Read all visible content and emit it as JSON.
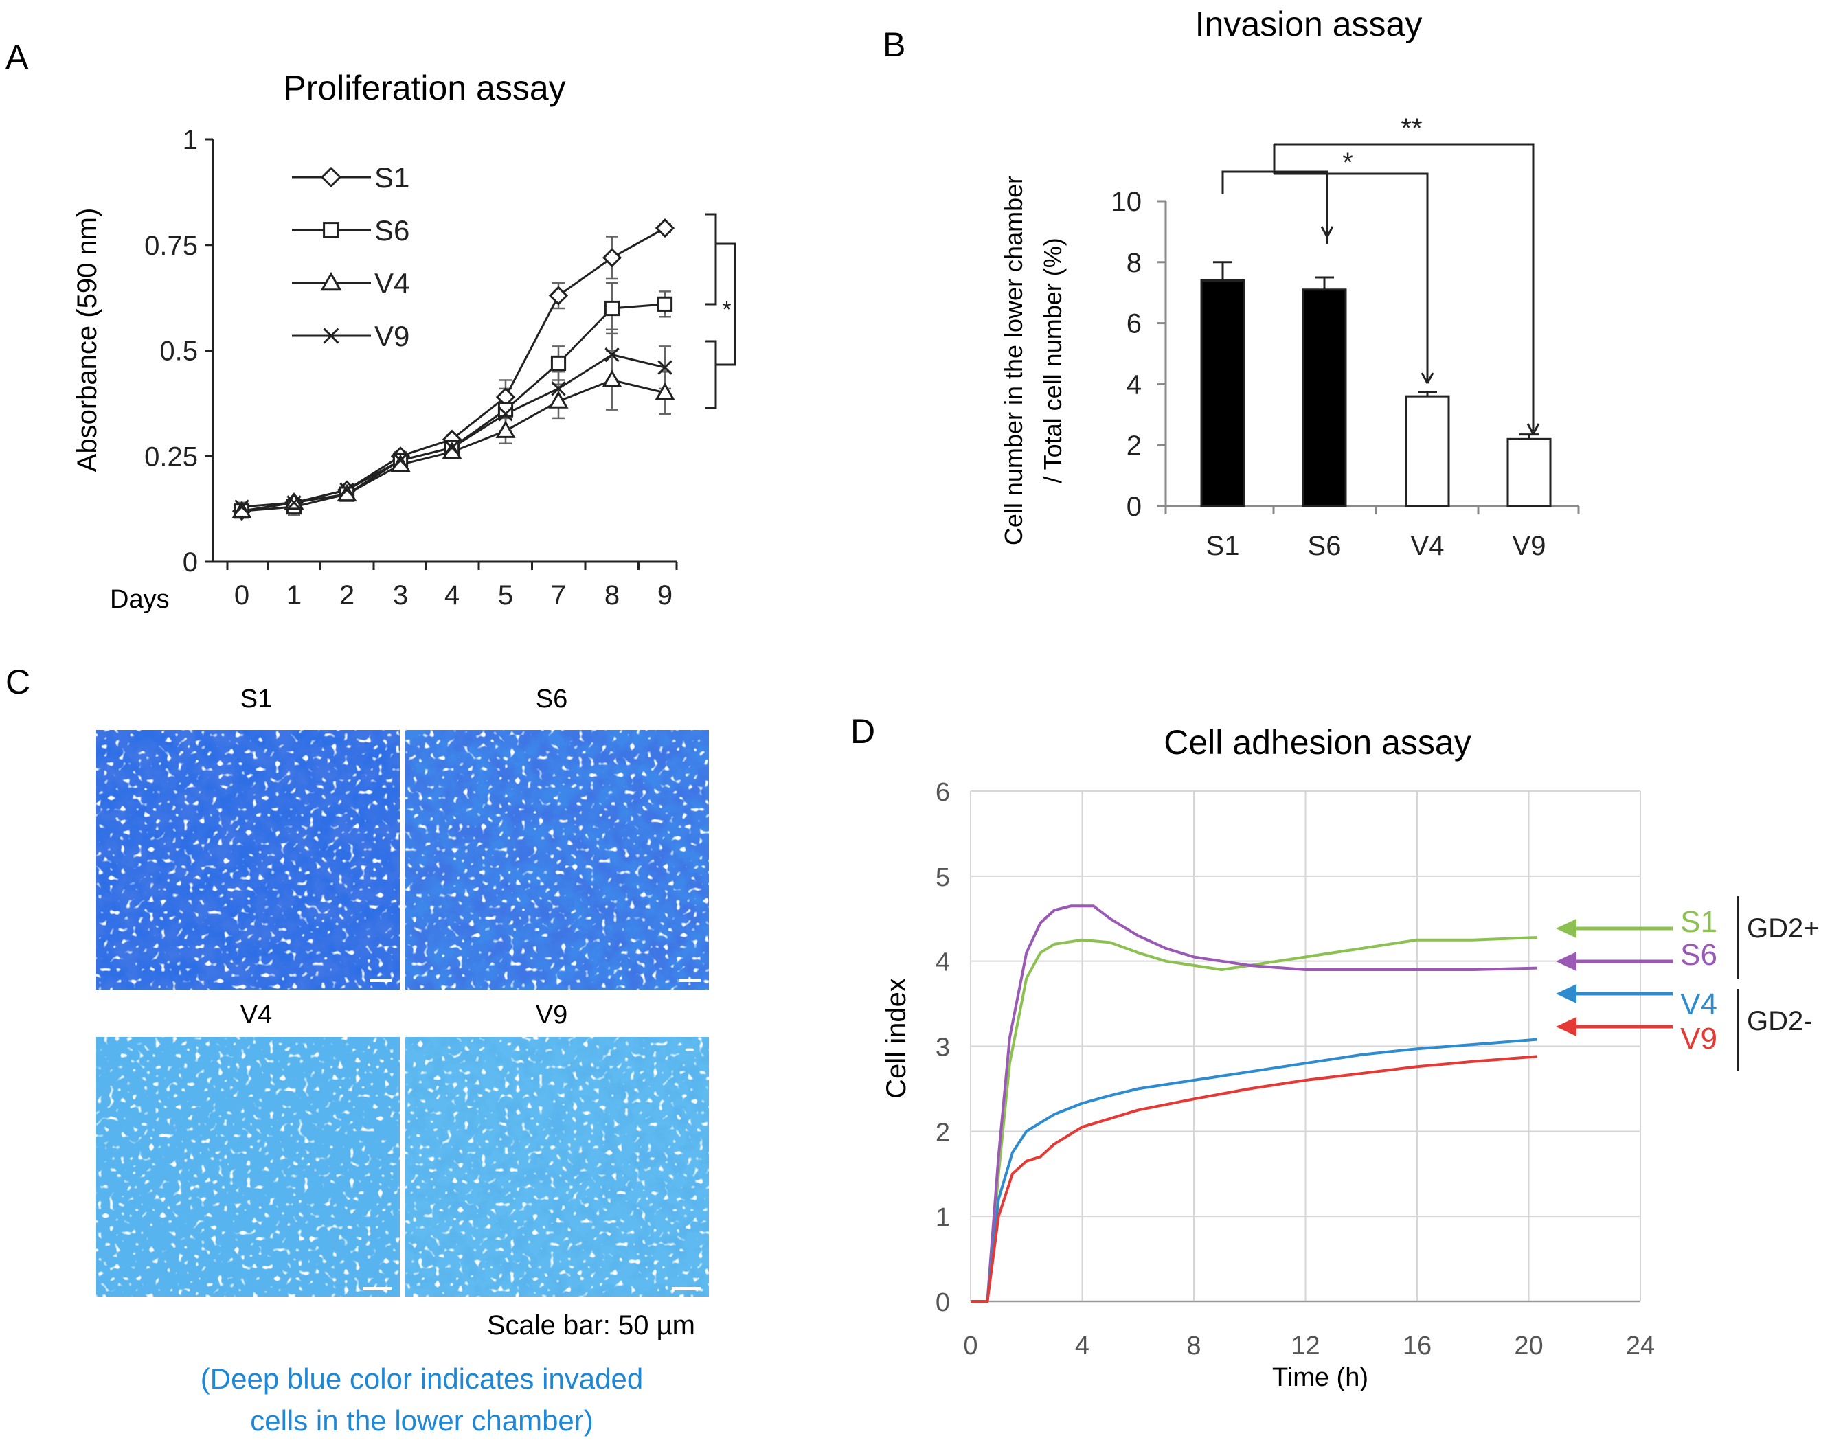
{
  "panel_letters": {
    "a": "A",
    "b": "B",
    "c": "C",
    "d": "D"
  },
  "chart_data": [
    {
      "panel": "A",
      "type": "line",
      "title": "Proliferation assay",
      "xlabel": "Days",
      "ylabel": "Absorbance (590 nm)",
      "categories": [
        "0",
        "1",
        "2",
        "3",
        "4",
        "5",
        "7",
        "8",
        "9"
      ],
      "ylim": [
        0,
        1
      ],
      "yticks": [
        "0",
        "0.25",
        "0.5",
        "0.75",
        "1"
      ],
      "series": [
        {
          "name": "S1",
          "marker": "diamond",
          "values": [
            0.12,
            0.14,
            0.17,
            0.25,
            0.29,
            0.39,
            0.63,
            0.72,
            0.79
          ],
          "errors": [
            0.01,
            0.01,
            0.01,
            0.01,
            0.01,
            0.04,
            0.03,
            0.05,
            0.01
          ]
        },
        {
          "name": "S6",
          "marker": "square",
          "values": [
            0.12,
            0.13,
            0.16,
            0.24,
            0.27,
            0.36,
            0.47,
            0.6,
            0.61
          ],
          "errors": [
            0.01,
            0.02,
            0.01,
            0.01,
            0.01,
            0.05,
            0.04,
            0.06,
            0.03
          ]
        },
        {
          "name": "V4",
          "marker": "triangle",
          "values": [
            0.12,
            0.14,
            0.16,
            0.23,
            0.26,
            0.31,
            0.38,
            0.43,
            0.4
          ],
          "errors": [
            0.01,
            0.01,
            0.01,
            0.01,
            0.01,
            0.03,
            0.04,
            0.07,
            0.05
          ]
        },
        {
          "name": "V9",
          "marker": "x",
          "values": [
            0.13,
            0.14,
            0.17,
            0.24,
            0.27,
            0.35,
            0.41,
            0.49,
            0.46
          ],
          "errors": [
            0.01,
            0.01,
            0.01,
            0.01,
            0.01,
            0.04,
            0.04,
            0.06,
            0.05
          ]
        }
      ],
      "significance": "*"
    },
    {
      "panel": "B",
      "type": "bar",
      "title": "Invasion assay",
      "ylabel_line1": "Cell number in the lower chamber",
      "ylabel_line2": "/ Total cell number (%)",
      "categories": [
        "S1",
        "S6",
        "V4",
        "V9"
      ],
      "values": [
        7.4,
        7.1,
        3.6,
        2.2
      ],
      "errors": [
        0.6,
        0.4,
        0.15,
        0.15
      ],
      "fills": [
        "#000000",
        "#000000",
        "#ffffff",
        "#ffffff"
      ],
      "ylim": [
        0,
        10
      ],
      "yticks": [
        "0",
        "2",
        "4",
        "6",
        "8",
        "10"
      ],
      "significance": [
        {
          "label": "*",
          "target": "V4"
        },
        {
          "label": "**",
          "target": "V9"
        }
      ]
    },
    {
      "panel": "D",
      "type": "line",
      "title": "Cell adhesion assay",
      "xlabel": "Time (h)",
      "ylabel": "Cell index",
      "xlim": [
        0,
        24
      ],
      "ylim": [
        0,
        6
      ],
      "xticks": [
        "0",
        "4",
        "8",
        "12",
        "16",
        "20",
        "24"
      ],
      "yticks": [
        "0",
        "1",
        "2",
        "3",
        "4",
        "5",
        "6"
      ],
      "series": [
        {
          "name": "S1",
          "color": "#8cc152",
          "x": [
            0,
            0.6,
            1.0,
            1.4,
            2,
            2.5,
            3,
            4,
            5,
            6,
            7,
            8,
            9,
            10,
            12,
            14,
            16,
            18,
            20.3
          ],
          "y": [
            0,
            0,
            1.5,
            2.8,
            3.8,
            4.1,
            4.2,
            4.25,
            4.22,
            4.1,
            4.0,
            3.95,
            3.9,
            3.95,
            4.05,
            4.15,
            4.25,
            4.25,
            4.28
          ]
        },
        {
          "name": "S6",
          "color": "#9b59b6",
          "x": [
            0,
            0.6,
            1.0,
            1.4,
            2,
            2.5,
            3,
            3.6,
            4.4,
            5,
            6,
            7,
            8,
            9,
            10,
            12,
            14,
            16,
            18,
            20.3
          ],
          "y": [
            0,
            0,
            1.7,
            3.1,
            4.1,
            4.45,
            4.6,
            4.65,
            4.65,
            4.5,
            4.3,
            4.15,
            4.05,
            4.0,
            3.95,
            3.9,
            3.9,
            3.9,
            3.9,
            3.92
          ]
        },
        {
          "name": "V4",
          "color": "#2e8bd0",
          "x": [
            0,
            0.6,
            1.0,
            1.5,
            2,
            3,
            4,
            5,
            6,
            8,
            10,
            12,
            14,
            16,
            18,
            20.3
          ],
          "y": [
            0,
            0,
            1.2,
            1.75,
            2.0,
            2.2,
            2.33,
            2.42,
            2.5,
            2.6,
            2.7,
            2.8,
            2.9,
            2.97,
            3.02,
            3.08
          ]
        },
        {
          "name": "V9",
          "color": "#e53935",
          "x": [
            0,
            0.6,
            1.0,
            1.5,
            2,
            2.5,
            3,
            4,
            5,
            6,
            8,
            10,
            12,
            14,
            16,
            18,
            20.3
          ],
          "y": [
            0,
            0,
            1.0,
            1.5,
            1.65,
            1.7,
            1.85,
            2.05,
            2.15,
            2.25,
            2.38,
            2.5,
            2.6,
            2.68,
            2.76,
            2.82,
            2.88
          ]
        }
      ],
      "groups": [
        {
          "label": "GD2+",
          "members": [
            "S1",
            "S6"
          ]
        },
        {
          "label": "GD2-",
          "members": [
            "V4",
            "V9"
          ]
        }
      ]
    }
  ],
  "panel_c": {
    "labels": [
      "S1",
      "S6",
      "V4",
      "V9"
    ],
    "scale_bar": "Scale bar: 50 µm",
    "caption_line1": "(Deep blue color indicates invaded",
    "caption_line2": "cells in the lower chamber)",
    "caption_color": "#1e88d8"
  }
}
